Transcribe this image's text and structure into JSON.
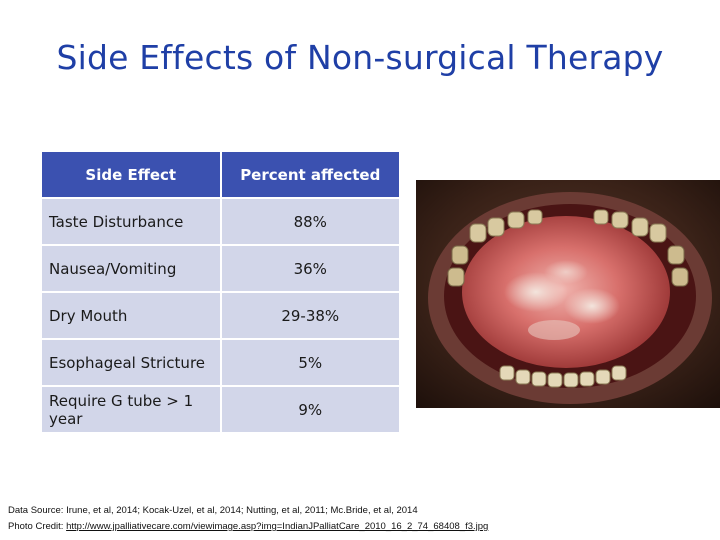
{
  "slide": {
    "title": "Side Effects of Non-surgical Therapy"
  },
  "table": {
    "headers": [
      "Side Effect",
      "Percent affected"
    ],
    "rows": [
      [
        "Taste Disturbance",
        "88%"
      ],
      [
        "Nausea/Vomiting",
        "36%"
      ],
      [
        "Dry Mouth",
        "29-38%"
      ],
      [
        "Esophageal Stricture",
        "5%"
      ],
      [
        "Require G tube > 1 year",
        "9%"
      ]
    ]
  },
  "footer": {
    "data_source": "Data Source: Irune, et al, 2014; Kocak-Uzel, et al, 2014; Nutting, et al, 2011; Mc.Bride, et al, 2014",
    "photo_credit_label": "Photo Credit: ",
    "photo_credit_url": "http://www.jpalliativecare.com/viewimage.asp?img=IndianJPalliatCare_2010_16_2_74_68408_f3.jpg"
  },
  "colors": {
    "title": "#1f3fa6",
    "table_header": "#3b51b0",
    "table_row": "#d2d6e9"
  },
  "image": {
    "icon": "oral-mucositis-photo"
  }
}
